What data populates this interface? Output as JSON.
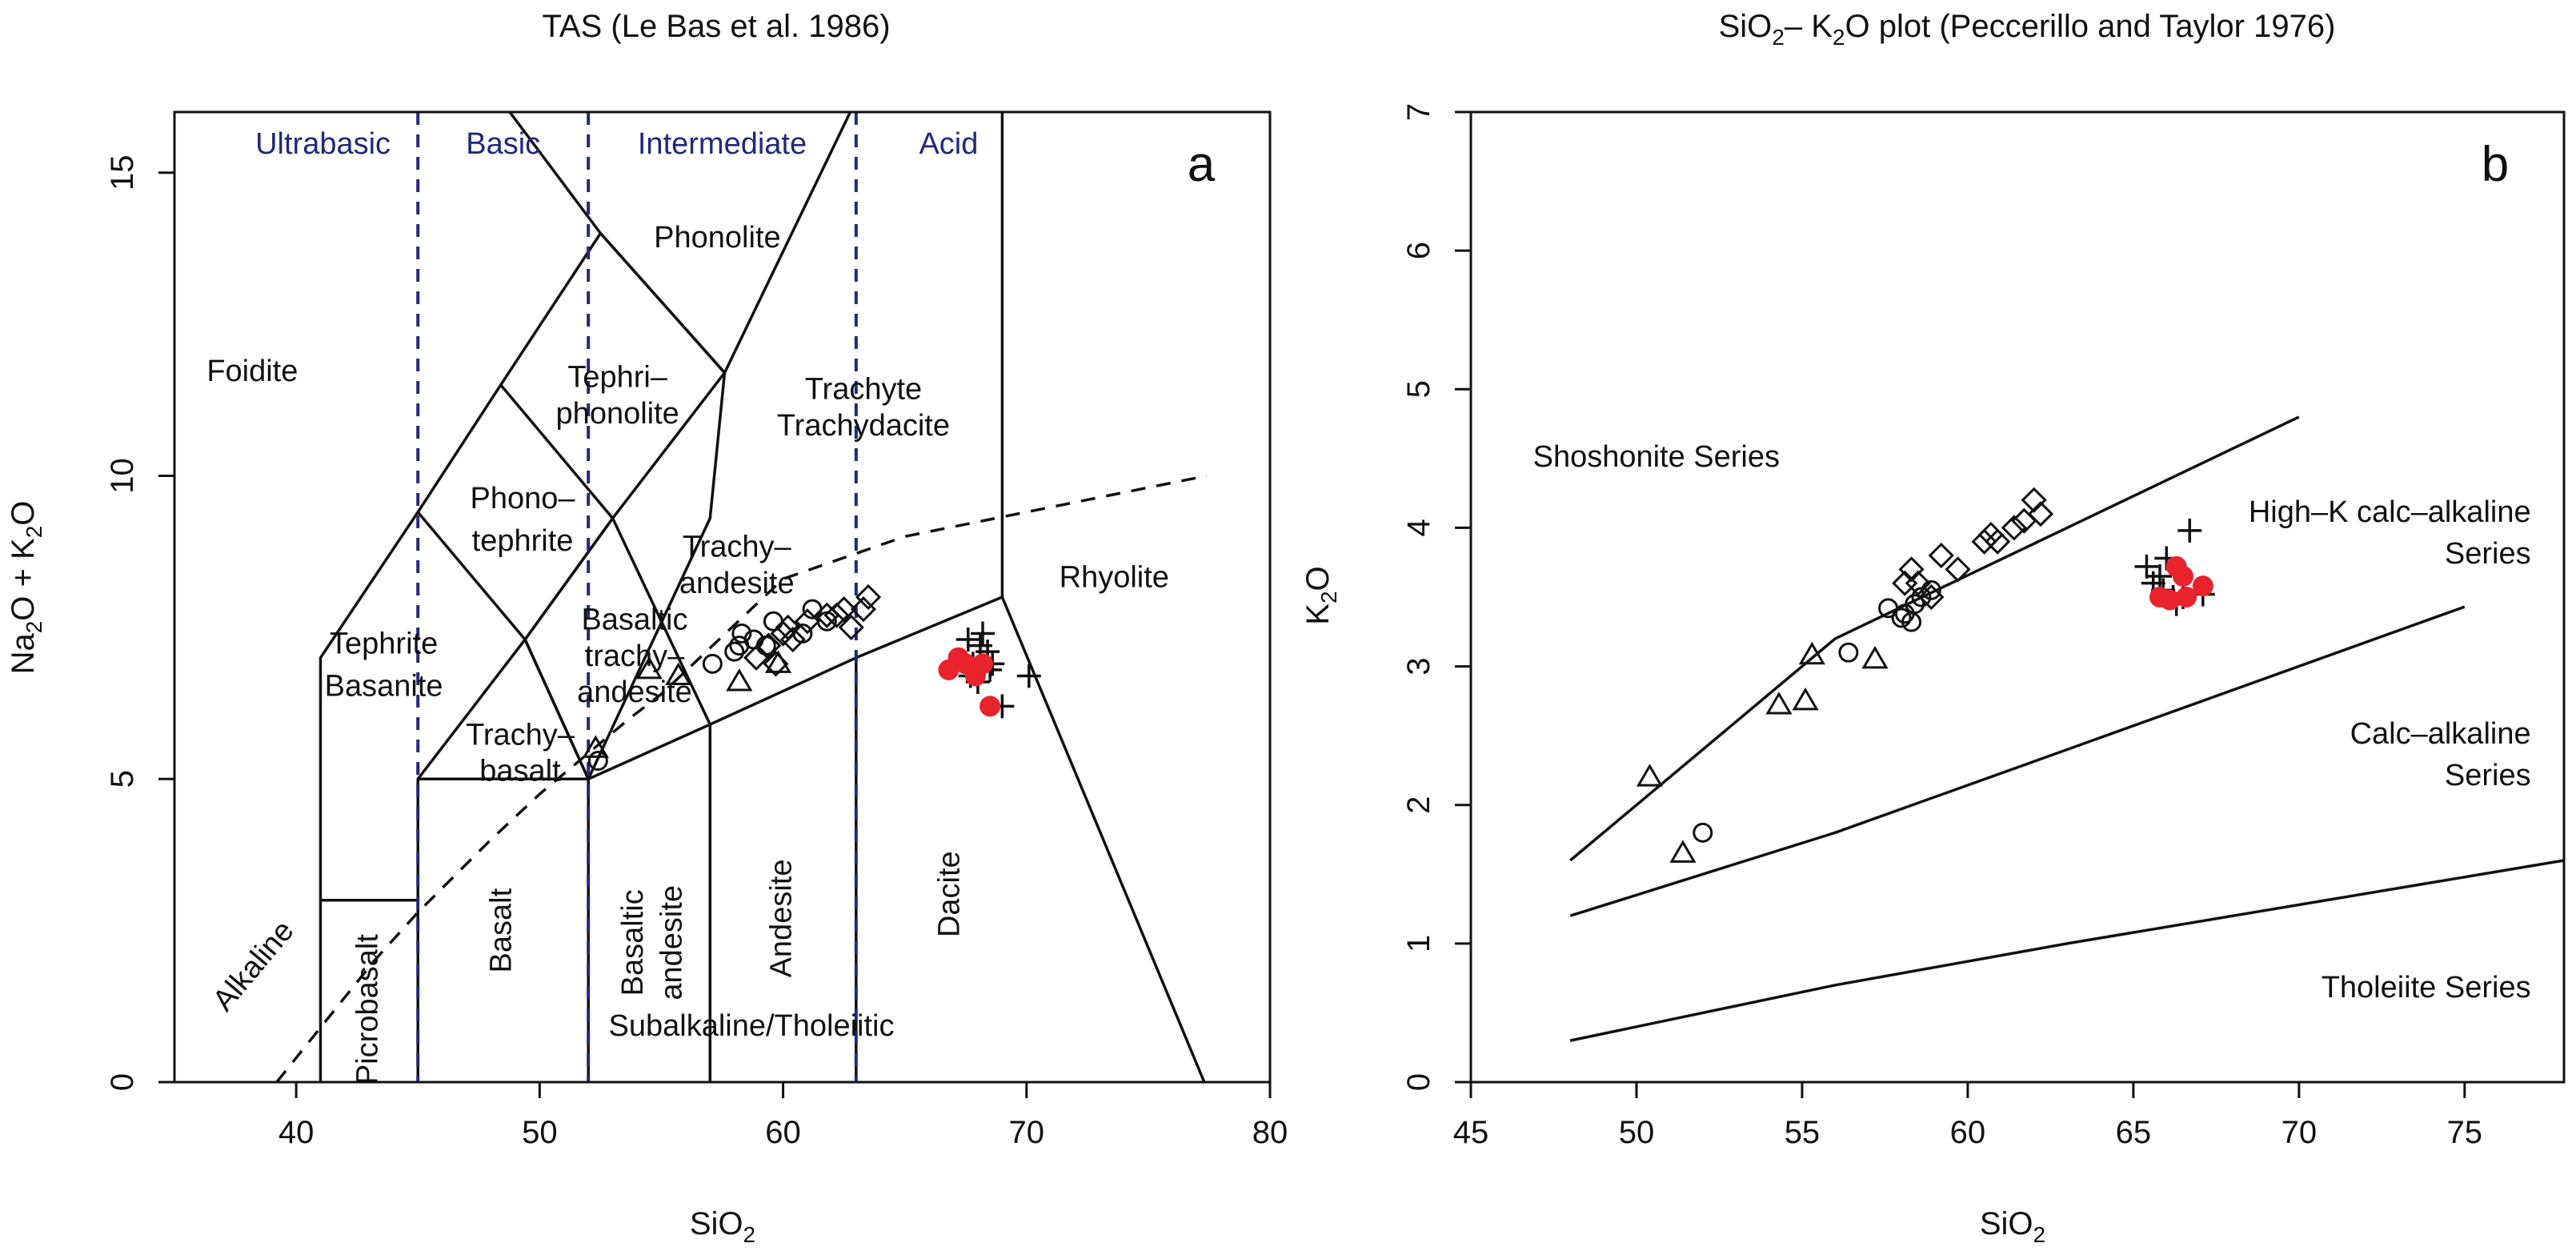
{
  "chart_data": [
    {
      "type": "scatter",
      "panel_letter": "a",
      "title_main": "TAS",
      "title_ref": "(Le Bas et al. 1986)",
      "xlabel": "SiO2",
      "ylabel": "Na2O + K2O",
      "xlim": [
        35,
        80
      ],
      "ylim": [
        0,
        16
      ],
      "xticks": [
        40,
        50,
        60,
        70,
        80
      ],
      "yticks": [
        0,
        5,
        10,
        15
      ],
      "grid": false,
      "boundaries": [
        [
          [
            41,
            0
          ],
          [
            41,
            7
          ],
          [
            45,
            9.4
          ],
          [
            48.4,
            11.5
          ],
          [
            52.5,
            14
          ],
          [
            57.6,
            11.7
          ],
          [
            63,
            16.2
          ]
        ],
        [
          [
            41,
            3
          ],
          [
            45,
            3
          ]
        ],
        [
          [
            45,
            0
          ],
          [
            45,
            5
          ],
          [
            49.4,
            7.3
          ],
          [
            53,
            9.3
          ],
          [
            57.6,
            11.7
          ]
        ],
        [
          [
            45,
            5
          ],
          [
            52,
            5
          ],
          [
            57,
            5.9
          ],
          [
            63,
            7
          ],
          [
            69,
            8
          ],
          [
            77.3,
            0
          ]
        ],
        [
          [
            52,
            0
          ],
          [
            52,
            5
          ],
          [
            57,
            9.3
          ],
          [
            57.6,
            11.7
          ]
        ],
        [
          [
            57,
            0
          ],
          [
            57,
            5.9
          ]
        ],
        [
          [
            63,
            0
          ],
          [
            63,
            7
          ]
        ],
        [
          [
            45,
            9.4
          ],
          [
            49.4,
            7.3
          ],
          [
            52,
            5
          ]
        ],
        [
          [
            48.4,
            11.5
          ],
          [
            53,
            9.3
          ],
          [
            57,
            5.9
          ]
        ],
        [
          [
            52.5,
            14
          ],
          [
            48.4,
            16.2
          ]
        ],
        [
          [
            52.5,
            14
          ],
          [
            57.6,
            11.7
          ]
        ],
        [
          [
            52,
            5
          ],
          [
            49.4,
            7.3
          ]
        ],
        [
          [
            69,
            8
          ],
          [
            69,
            16.2
          ]
        ],
        [
          [
            57.6,
            11.7
          ],
          [
            57.6,
            11.7
          ]
        ],
        [
          [
            49.4,
            7.3
          ],
          [
            53,
            9.3
          ]
        ]
      ],
      "alkaline_line": [
        [
          39.2,
          0
        ],
        [
          40,
          0.4
        ],
        [
          43.2,
          2
        ],
        [
          45,
          2.8
        ],
        [
          48,
          4
        ],
        [
          50,
          4.75
        ],
        [
          53.7,
          6
        ],
        [
          55,
          6.4
        ],
        [
          60,
          8.3
        ],
        [
          65,
          9
        ],
        [
          77.4,
          10
        ]
      ],
      "region_labels": [
        {
          "text": "Foidite",
          "x": 38.2,
          "y": 11.7
        },
        {
          "text": "Phonolite",
          "x": 57.3,
          "y": 13.9
        },
        {
          "text": "Tephri–",
          "x": 53.2,
          "y": 11.6
        },
        {
          "text": "phonolite",
          "x": 53.2,
          "y": 11.0
        },
        {
          "text": "Trachyte",
          "x": 63.3,
          "y": 11.4
        },
        {
          "text": "Trachydacite",
          "x": 63.3,
          "y": 10.8
        },
        {
          "text": "Phono–",
          "x": 49.3,
          "y": 9.6
        },
        {
          "text": "tephrite",
          "x": 49.3,
          "y": 8.9
        },
        {
          "text": "Trachy–",
          "x": 58.1,
          "y": 8.8
        },
        {
          "text": "andesite",
          "x": 58.1,
          "y": 8.2
        },
        {
          "text": "Rhyolite",
          "x": 73.6,
          "y": 8.3
        },
        {
          "text": "Tephrite",
          "x": 43.6,
          "y": 7.2
        },
        {
          "text": "Basanite",
          "x": 43.6,
          "y": 6.5
        },
        {
          "text": "Basaltic",
          "x": 53.9,
          "y": 7.6
        },
        {
          "text": "trachy–",
          "x": 53.9,
          "y": 7.0
        },
        {
          "text": "andesite",
          "x": 53.9,
          "y": 6.4
        },
        {
          "text": "Trachy–",
          "x": 49.2,
          "y": 5.7
        },
        {
          "text": "basalt",
          "x": 49.2,
          "y": 5.1
        },
        {
          "text": "Subalkaline/Tholeiitic",
          "x": 58.7,
          "y": 0.9
        }
      ],
      "rotated_labels": [
        {
          "text": "Alkaline",
          "x": 38.3,
          "y": 1.9,
          "angle": -50
        },
        {
          "text": "Picrobasalt",
          "x": 43,
          "y": 1.2,
          "angle": -90
        },
        {
          "text": "Basalt",
          "x": 48.5,
          "y": 2.5,
          "angle": -90
        },
        {
          "text": "Basaltic",
          "x": 53.9,
          "y": 2.3,
          "angle": -90
        },
        {
          "text": "andesite",
          "x": 55.5,
          "y": 2.3,
          "angle": -90
        },
        {
          "text": "Andesite",
          "x": 60,
          "y": 2.7,
          "angle": -90
        },
        {
          "text": "Dacite",
          "x": 66.9,
          "y": 3.1,
          "angle": -90
        }
      ],
      "dividers": [
        45,
        52,
        63
      ],
      "category_labels": [
        {
          "text": "Ultrabasic",
          "x": 41.1
        },
        {
          "text": "Basic",
          "x": 48.5
        },
        {
          "text": "Intermediate",
          "x": 57.5
        },
        {
          "text": "Acid",
          "x": 66.8
        }
      ],
      "series": [
        {
          "name": "triangles",
          "marker": "triangle",
          "points": [
            [
              52.3,
              5.5
            ],
            [
              54.5,
              6.8
            ],
            [
              55.7,
              6.7
            ],
            [
              58.2,
              6.6
            ],
            [
              59.8,
              6.9
            ]
          ]
        },
        {
          "name": "circles",
          "marker": "circle",
          "points": [
            [
              52.4,
              5.3
            ],
            [
              57.1,
              6.9
            ],
            [
              58,
              7.1
            ],
            [
              58.2,
              7.2
            ],
            [
              58.3,
              7.4
            ],
            [
              58.8,
              7.3
            ],
            [
              59.3,
              7.2
            ],
            [
              59.6,
              7.6
            ],
            [
              60.8,
              7.4
            ],
            [
              61.2,
              7.8
            ],
            [
              61.8,
              7.6
            ]
          ]
        },
        {
          "name": "diamonds",
          "marker": "diamond",
          "points": [
            [
              58.9,
              7.0
            ],
            [
              59.4,
              7.2
            ],
            [
              59.7,
              6.9
            ],
            [
              60,
              7.4
            ],
            [
              60.2,
              7.5
            ],
            [
              60.4,
              7.3
            ],
            [
              61,
              7.6
            ],
            [
              61.8,
              7.7
            ],
            [
              62.2,
              7.7
            ],
            [
              62.5,
              7.8
            ],
            [
              62.8,
              7.5
            ],
            [
              63.3,
              7.8
            ],
            [
              63.5,
              8.0
            ]
          ]
        },
        {
          "name": "plus",
          "marker": "plus",
          "points": [
            [
              67.6,
              7.3
            ],
            [
              67.8,
              6.9
            ],
            [
              68.1,
              7.2
            ],
            [
              68.4,
              7.1
            ],
            [
              68.6,
              6.9
            ],
            [
              68,
              6.6
            ],
            [
              68.5,
              6.8
            ],
            [
              67.7,
              6.7
            ],
            [
              70.1,
              6.7
            ],
            [
              69,
              6.2
            ],
            [
              68.2,
              7.4
            ]
          ]
        },
        {
          "name": "red",
          "marker": "filled-circle",
          "color": "#e8232b",
          "points": [
            [
              66.8,
              6.8
            ],
            [
              67.2,
              7.0
            ],
            [
              67.5,
              6.9
            ],
            [
              67.9,
              6.7
            ],
            [
              68.2,
              6.9
            ],
            [
              68.5,
              6.2
            ]
          ]
        }
      ]
    },
    {
      "type": "scatter",
      "panel_letter": "b",
      "title_main": "SiO2–K2O plot",
      "title_ref": "(Peccerillo and Taylor 1976)",
      "xlabel": "SiO2",
      "ylabel": "K2O",
      "xlim": [
        45,
        78
      ],
      "ylim": [
        0,
        7
      ],
      "xticks": [
        45,
        50,
        55,
        60,
        65,
        70,
        75
      ],
      "yticks": [
        0,
        1,
        2,
        3,
        4,
        5,
        6,
        7
      ],
      "grid": false,
      "boundaries": [
        [
          [
            48,
            1.6
          ],
          [
            52,
            2.4
          ],
          [
            56,
            3.2
          ],
          [
            63,
            4.0
          ],
          [
            70,
            4.8
          ]
        ],
        [
          [
            48,
            1.2
          ],
          [
            56,
            1.8
          ],
          [
            63,
            2.4
          ],
          [
            75,
            3.43
          ]
        ],
        [
          [
            48,
            0.3
          ],
          [
            56,
            0.7
          ],
          [
            63,
            1.0
          ],
          [
            78,
            1.6
          ]
        ]
      ],
      "region_labels": [
        {
          "text": "Shoshonite Series",
          "x": 50.6,
          "y": 4.5,
          "anchor": "middle"
        },
        {
          "text": "High–K calc–alkaline",
          "x": 77,
          "y": 4.1,
          "anchor": "end"
        },
        {
          "text": "Series",
          "x": 77,
          "y": 3.8,
          "anchor": "end"
        },
        {
          "text": "Calc–alkaline",
          "x": 77,
          "y": 2.5,
          "anchor": "end"
        },
        {
          "text": "Series",
          "x": 77,
          "y": 2.2,
          "anchor": "end"
        },
        {
          "text": "Tholeiite Series",
          "x": 77,
          "y": 0.67,
          "anchor": "end"
        }
      ],
      "series": [
        {
          "name": "triangles",
          "marker": "triangle",
          "points": [
            [
              50.4,
              2.2
            ],
            [
              51.4,
              1.65
            ],
            [
              54.3,
              2.72
            ],
            [
              55.1,
              2.75
            ],
            [
              55.3,
              3.08
            ],
            [
              57.2,
              3.05
            ]
          ]
        },
        {
          "name": "circles",
          "marker": "circle",
          "points": [
            [
              52,
              1.8
            ],
            [
              56.4,
              3.1
            ],
            [
              57.6,
              3.42
            ],
            [
              58,
              3.35
            ],
            [
              58.1,
              3.38
            ],
            [
              58.3,
              3.32
            ],
            [
              58.4,
              3.45
            ],
            [
              58.6,
              3.5
            ],
            [
              58.9,
              3.55
            ]
          ]
        },
        {
          "name": "diamonds",
          "marker": "diamond",
          "points": [
            [
              58.1,
              3.6
            ],
            [
              58.3,
              3.7
            ],
            [
              58.5,
              3.6
            ],
            [
              58.9,
              3.5
            ],
            [
              59.2,
              3.8
            ],
            [
              59.7,
              3.7
            ],
            [
              60.5,
              3.9
            ],
            [
              60.7,
              3.95
            ],
            [
              60.9,
              3.9
            ],
            [
              61.4,
              4.0
            ],
            [
              61.7,
              4.05
            ],
            [
              62,
              4.2
            ],
            [
              62.2,
              4.1
            ]
          ]
        },
        {
          "name": "plus",
          "marker": "plus",
          "points": [
            [
              65.4,
              3.72
            ],
            [
              65.6,
              3.6
            ],
            [
              65.8,
              3.65
            ],
            [
              66,
              3.78
            ],
            [
              66.2,
              3.5
            ],
            [
              66.3,
              3.45
            ],
            [
              66.5,
              3.5
            ],
            [
              66.7,
              3.98
            ],
            [
              67.1,
              3.52
            ],
            [
              65.9,
              3.55
            ]
          ]
        },
        {
          "name": "red",
          "marker": "filled-circle",
          "color": "#e8232b",
          "points": [
            [
              65.8,
              3.5
            ],
            [
              66.1,
              3.48
            ],
            [
              66.3,
              3.72
            ],
            [
              66.5,
              3.65
            ],
            [
              66.6,
              3.5
            ],
            [
              67.1,
              3.58
            ]
          ]
        }
      ]
    }
  ]
}
